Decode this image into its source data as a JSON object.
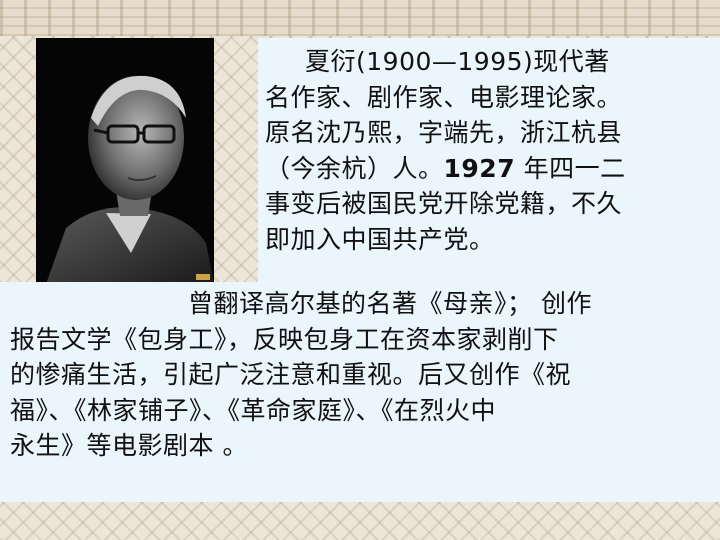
{
  "slide": {
    "intro_lines": [
      "夏衍(1900—1995)现代著",
      "名作家、剧作家、电影理论家。",
      "原名沈乃熙，字端先，浙江杭县",
      "（今余杭）人。",
      "1927",
      "年四一二",
      "事变后被国民党开除党籍，不久",
      "即加入中国共产党。"
    ],
    "works_lines": [
      "曾翻译高尔基的名著《母亲》； 创作",
      "报告文学《包身工》，反映包身工在资本家剥削下",
      "的惨痛生活，引起广泛注意和重视。后又创作《祝",
      "福》、《林家铺子》、《革命家庭》、《在烈火中",
      "永生》等电影剧本 。"
    ]
  },
  "colors": {
    "panel_bg": "#eaf5fc",
    "text": "#111111",
    "page_bg": "#ece5d8"
  }
}
